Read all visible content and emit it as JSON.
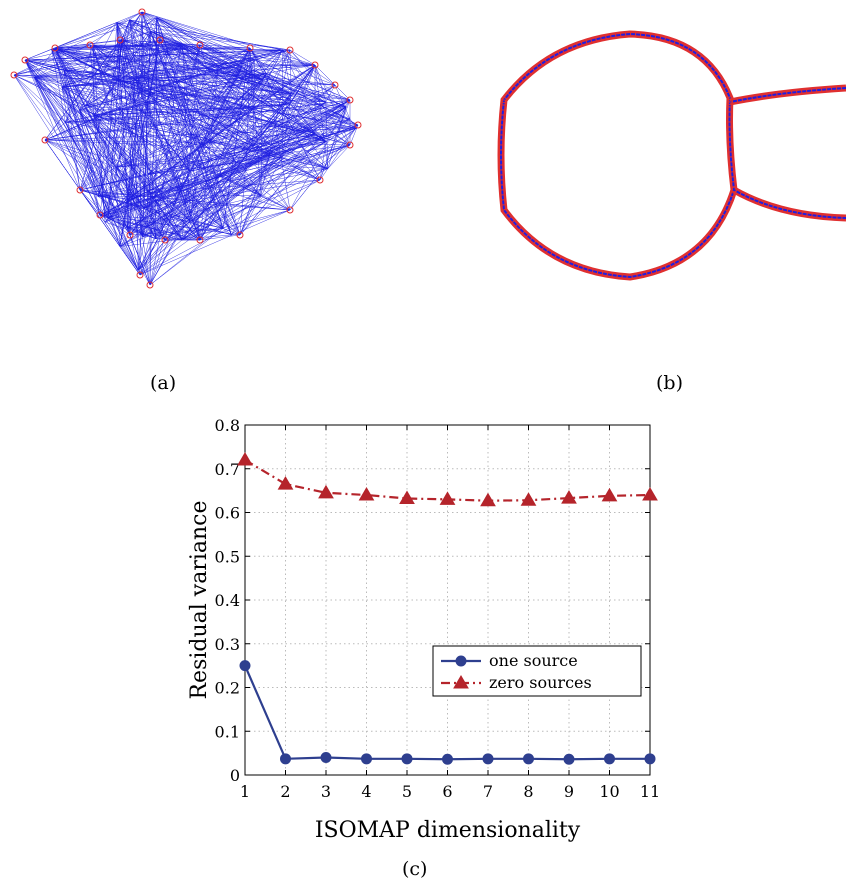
{
  "panels": {
    "a_label": "(a)",
    "b_label": "(b)",
    "c_label": "(c)"
  },
  "colors": {
    "graph_edges": "#1f1fe0",
    "graph_nodes": "#e03030",
    "series1": "#2e3f8f",
    "series2": "#b5242b"
  },
  "chart_data": {
    "type": "line",
    "xlabel": "ISOMAP dimensionality",
    "ylabel": "Residual variance",
    "x": [
      1,
      2,
      3,
      4,
      5,
      6,
      7,
      8,
      9,
      10,
      11
    ],
    "xlim": [
      1,
      11
    ],
    "ylim": [
      0,
      0.8
    ],
    "yticks": [
      "0",
      "0.1",
      "0.2",
      "0.3",
      "0.4",
      "0.5",
      "0.6",
      "0.7",
      "0.8"
    ],
    "xticks": [
      "1",
      "2",
      "3",
      "4",
      "5",
      "6",
      "7",
      "8",
      "9",
      "10",
      "11"
    ],
    "grid": true,
    "legend_position": "lower-right",
    "series": [
      {
        "name": "one source",
        "marker": "circle",
        "line": "solid",
        "values": [
          0.25,
          0.037,
          0.04,
          0.037,
          0.037,
          0.036,
          0.037,
          0.037,
          0.036,
          0.037,
          0.037
        ]
      },
      {
        "name": "zero sources",
        "marker": "triangle",
        "line": "dash-dot",
        "values": [
          0.72,
          0.665,
          0.645,
          0.64,
          0.632,
          0.63,
          0.627,
          0.628,
          0.633,
          0.638,
          0.64
        ]
      }
    ]
  }
}
